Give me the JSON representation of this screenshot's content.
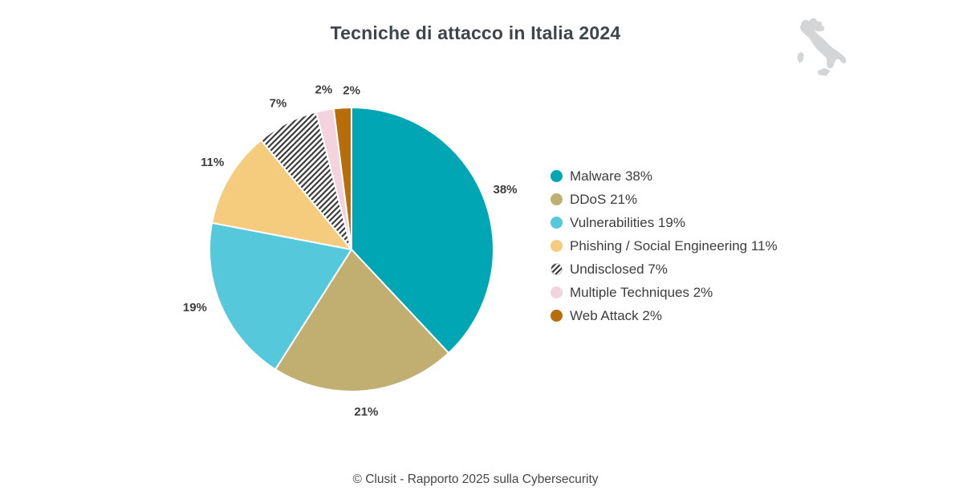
{
  "page": {
    "title": "Tecniche di attacco in Italia 2024",
    "footer": "© Clusit - Rapporto 2025 sulla Cybersecurity"
  },
  "colors": {
    "background": "#ffffff",
    "title_text": "#40454a",
    "percent_label_text": "#3d3d3d",
    "legend_text": "#3d3d3d",
    "footer_text": "#474747",
    "slice_divider": "#ffffff",
    "hatch_line": "#3b3b3b",
    "hatch_background": "#fcfcfc",
    "italy_silhouette": "#d3d5d7"
  },
  "chart_data": {
    "type": "pie",
    "title": "Tecniche di attacco in Italia 2024",
    "start_angle_deg": 0,
    "direction": "clockwise",
    "value_suffix": "%",
    "legend_position": "right",
    "slices": [
      {
        "label": "Malware",
        "value": 38,
        "color": "#00A6B3",
        "pattern": "solid"
      },
      {
        "label": "DDoS",
        "value": 21,
        "color": "#C1AF72",
        "pattern": "solid"
      },
      {
        "label": "Vulnerabilities",
        "value": 19,
        "color": "#55C8DC",
        "pattern": "solid"
      },
      {
        "label": "Phishing / Social Engineering",
        "value": 11,
        "color": "#F5CC7E",
        "pattern": "solid"
      },
      {
        "label": "Undisclosed",
        "value": 7,
        "color": "#FCFCFC",
        "pattern": "diagonal-hatch"
      },
      {
        "label": "Multiple Techniques",
        "value": 2,
        "color": "#F2D3DE",
        "pattern": "solid"
      },
      {
        "label": "Web Attack",
        "value": 2,
        "color": "#B76E0A",
        "pattern": "solid"
      }
    ]
  }
}
